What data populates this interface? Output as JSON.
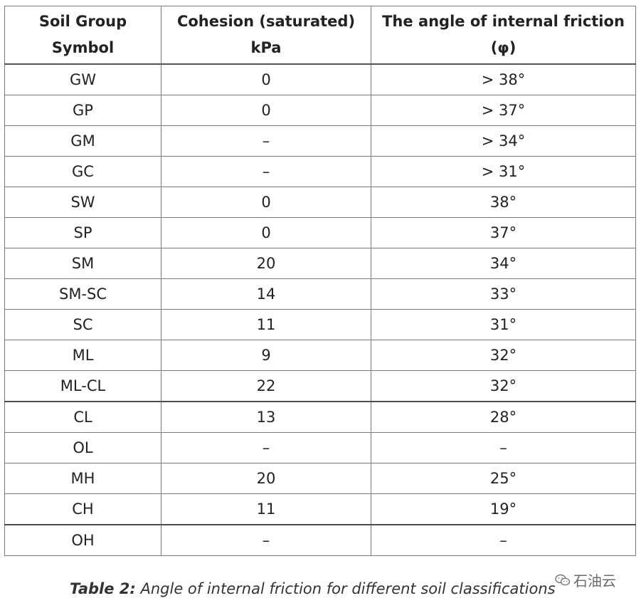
{
  "table": {
    "headers": [
      "Soil Group\nSymbol",
      "Cohesion (saturated)\nkPa",
      "The angle of internal friction\n(φ)"
    ],
    "rows": [
      [
        "GW",
        "0",
        "> 38°"
      ],
      [
        "GP",
        "0",
        "> 37°"
      ],
      [
        "GM",
        "–",
        "> 34°"
      ],
      [
        "GC",
        "–",
        "> 31°"
      ],
      [
        "SW",
        "0",
        "38°"
      ],
      [
        "SP",
        "0",
        "37°"
      ],
      [
        "SM",
        "20",
        "34°"
      ],
      [
        "SM-SC",
        "14",
        "33°"
      ],
      [
        "SC",
        "11",
        "31°"
      ],
      [
        "ML",
        "9",
        "32°"
      ],
      [
        "ML-CL",
        "22",
        "32°"
      ],
      [
        "CL",
        "13",
        "28°"
      ],
      [
        "OL",
        "–",
        "–"
      ],
      [
        "MH",
        "20",
        "25°"
      ],
      [
        "CH",
        "11",
        "19°"
      ],
      [
        "OH",
        "–",
        "–"
      ]
    ]
  },
  "caption": {
    "label": "Table 2:",
    "text": " Angle of internal friction for different soil classifications"
  },
  "watermark": {
    "text": "石油云",
    "icon": "wechat-logo-icon"
  }
}
